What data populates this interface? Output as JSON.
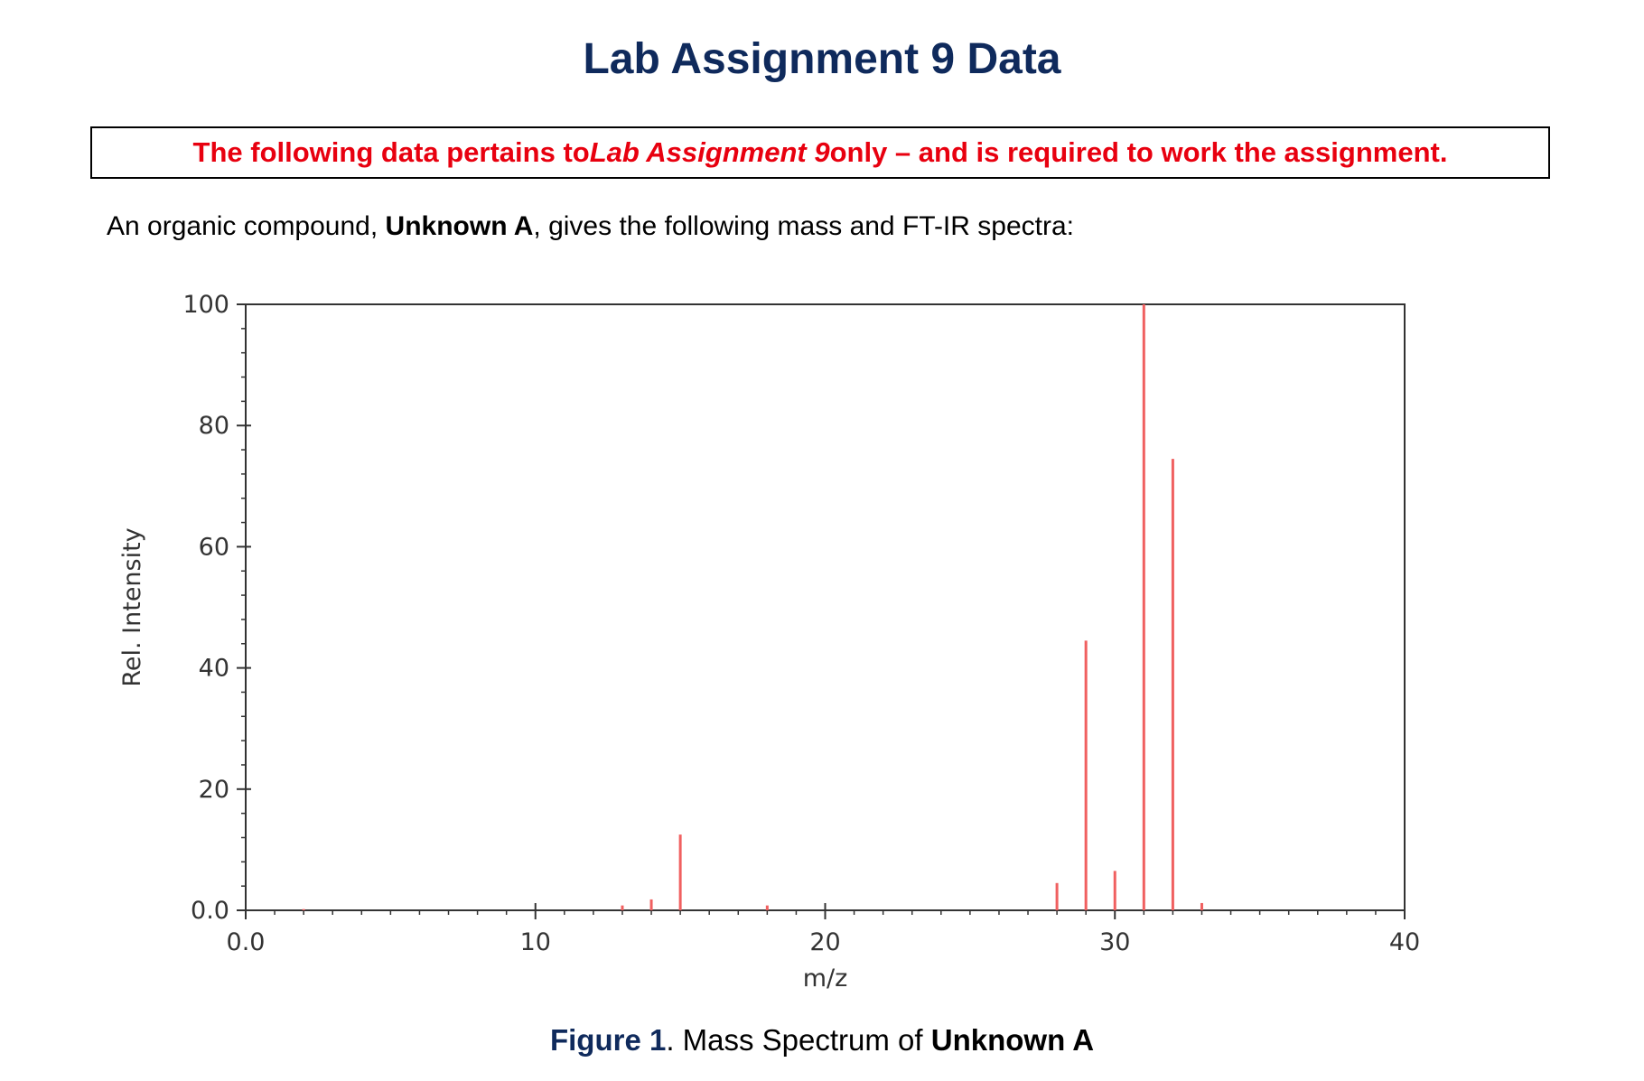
{
  "page": {
    "title": "Lab Assignment 9 Data",
    "notice": {
      "part1": "The following data pertains to ",
      "italic": "Lab Assignment 9",
      "part2": " only – and is required to work the assignment."
    },
    "intro": {
      "part1": "An organic compound, ",
      "bold": "Unknown A",
      "part2": ", gives the following mass and FT-IR spectra:"
    },
    "caption": {
      "label": "Figure 1",
      "part1": ". Mass Spectrum of ",
      "bold": "Unknown A"
    }
  },
  "chart_data": {
    "type": "bar",
    "xlabel": "m/z",
    "ylabel": "Rel. Intensity",
    "xlim": [
      0,
      40
    ],
    "ylim": [
      0,
      100
    ],
    "x_ticks": [
      "0.0",
      "10",
      "20",
      "30",
      "40"
    ],
    "x_tick_values": [
      0,
      10,
      20,
      30,
      40
    ],
    "y_ticks": [
      "0.0",
      "20",
      "40",
      "60",
      "80",
      "100"
    ],
    "y_tick_values": [
      0,
      20,
      40,
      60,
      80,
      100
    ],
    "grid": false,
    "peaks": [
      {
        "mz": 2,
        "intensity": 0.2
      },
      {
        "mz": 13,
        "intensity": 0.8
      },
      {
        "mz": 14,
        "intensity": 1.8
      },
      {
        "mz": 15,
        "intensity": 12.5
      },
      {
        "mz": 18,
        "intensity": 0.8
      },
      {
        "mz": 28,
        "intensity": 4.5
      },
      {
        "mz": 29,
        "intensity": 44.5
      },
      {
        "mz": 30,
        "intensity": 6.5
      },
      {
        "mz": 31,
        "intensity": 100
      },
      {
        "mz": 32,
        "intensity": 74.5
      },
      {
        "mz": 33,
        "intensity": 1.2
      }
    ],
    "colors": {
      "peak": "#f06060",
      "axis": "#333333",
      "tick_text": "#333333"
    }
  }
}
